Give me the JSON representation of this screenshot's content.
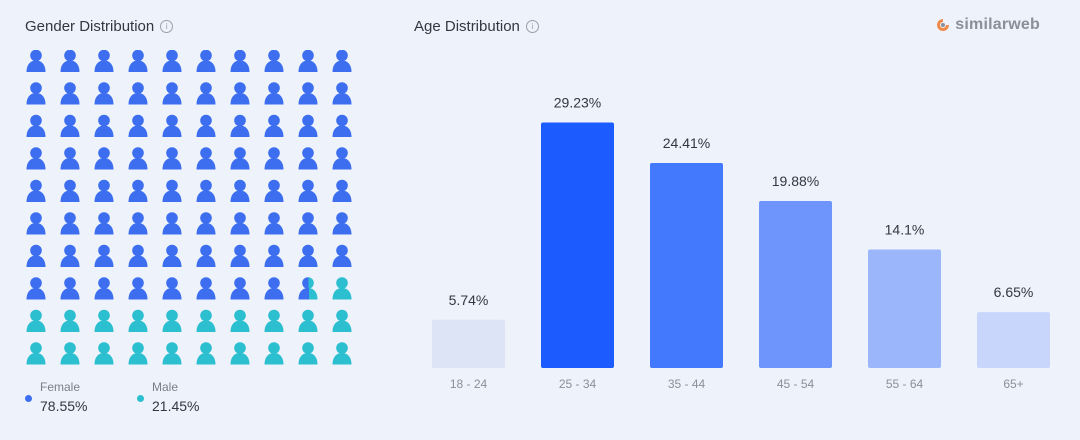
{
  "gender": {
    "title": "Gender Distribution",
    "info_icon": "info-icon",
    "female": {
      "label": "Female",
      "value": "78.55%",
      "percent": 78.55,
      "color": "#3d6ef0"
    },
    "male": {
      "label": "Male",
      "value": "21.45%",
      "percent": 21.45,
      "color": "#2bbfcf"
    }
  },
  "age": {
    "title": "Age Distribution",
    "info_icon": "info-icon"
  },
  "brand": {
    "name": "similarweb",
    "icon": "similarweb-logo-icon"
  },
  "chart_data": [
    {
      "type": "waffle",
      "title": "Gender Distribution",
      "series": [
        {
          "name": "Female",
          "value": 78.55
        },
        {
          "name": "Male",
          "value": 21.45
        }
      ],
      "legend": "bottom"
    },
    {
      "type": "bar",
      "title": "Age Distribution",
      "categories": [
        "18 - 24",
        "25 - 34",
        "35 - 44",
        "45 - 54",
        "55 - 64",
        "65+"
      ],
      "values": [
        5.74,
        29.23,
        24.41,
        19.88,
        14.1,
        6.65
      ],
      "labels": [
        "5.74%",
        "29.23%",
        "24.41%",
        "19.88%",
        "14.1%",
        "6.65%"
      ],
      "colors": [
        "#dde4f5",
        "#1c5cff",
        "#4379fc",
        "#6d95fb",
        "#9bb6fb",
        "#c8d6fb"
      ],
      "grid": false
    }
  ]
}
